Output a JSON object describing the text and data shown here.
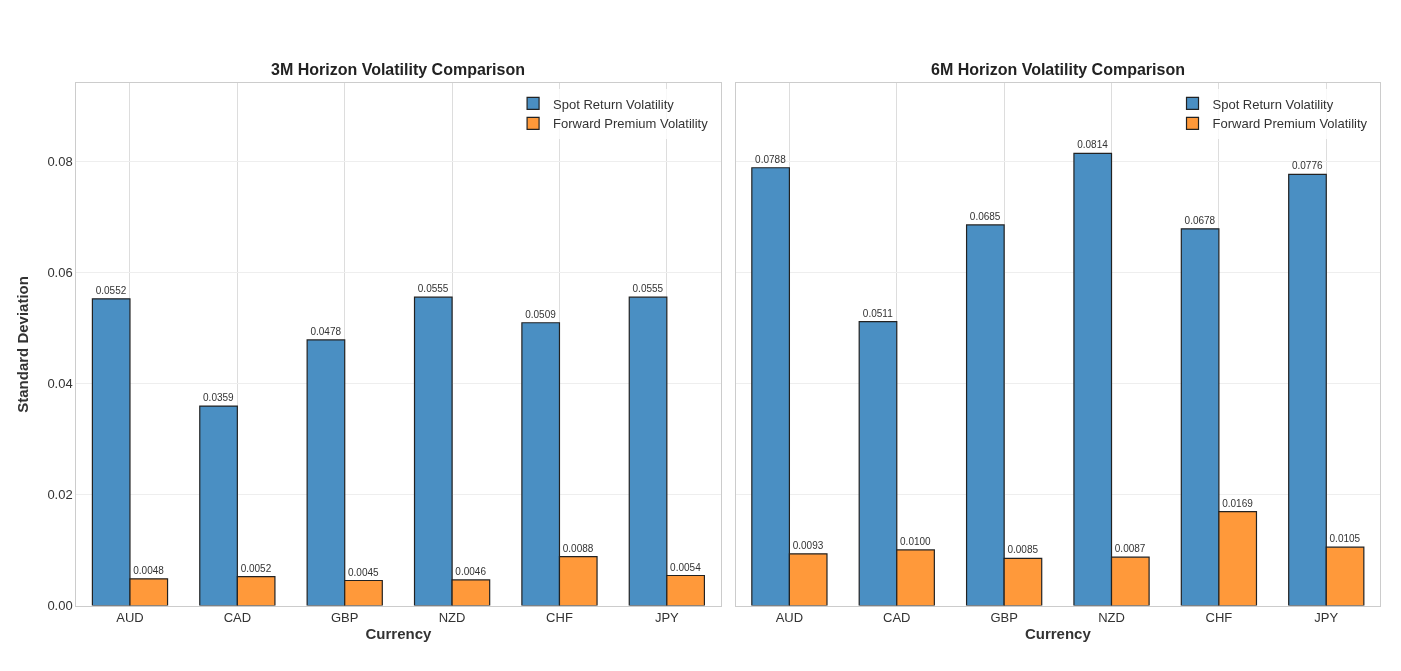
{
  "chart_data": [
    {
      "type": "bar",
      "title": "3M Horizon Volatility Comparison",
      "xlabel": "Currency",
      "ylabel": "Standard Deviation",
      "categories": [
        "AUD",
        "CAD",
        "GBP",
        "NZD",
        "CHF",
        "JPY"
      ],
      "series": [
        {
          "name": "Spot Return Volatility",
          "color": "#4a8fc3",
          "values": [
            0.0552,
            0.0359,
            0.0478,
            0.0555,
            0.0509,
            0.0555
          ],
          "value_labels": [
            "0.0552",
            "0.0359",
            "0.0478",
            "0.0555",
            "0.0509",
            "0.0555"
          ]
        },
        {
          "name": "Forward Premium Volatility",
          "color": "#ff993a",
          "values": [
            0.0048,
            0.0052,
            0.0045,
            0.0046,
            0.0088,
            0.0054
          ],
          "value_labels": [
            "0.0048",
            "0.0052",
            "0.0045",
            "0.0046",
            "0.0088",
            "0.0054"
          ]
        }
      ],
      "ylim": [
        0,
        0.094
      ],
      "yticks": [
        {
          "value": 0,
          "label": "0.00"
        },
        {
          "value": 0.02,
          "label": "0.02"
        },
        {
          "value": 0.04,
          "label": "0.04"
        },
        {
          "value": 0.06,
          "label": "0.06"
        },
        {
          "value": 0.08,
          "label": "0.08"
        }
      ],
      "grid": true,
      "legend": "top right"
    },
    {
      "type": "bar",
      "title": "6M Horizon Volatility Comparison",
      "xlabel": "Currency",
      "categories": [
        "AUD",
        "CAD",
        "GBP",
        "NZD",
        "CHF",
        "JPY"
      ],
      "series": [
        {
          "name": "Spot Return Volatility",
          "color": "#4a8fc3",
          "values": [
            0.0788,
            0.0511,
            0.0685,
            0.0814,
            0.0678,
            0.0776
          ],
          "value_labels": [
            "0.0788",
            "0.0511",
            "0.0685",
            "0.0814",
            "0.0678",
            "0.0776"
          ]
        },
        {
          "name": "Forward Premium Volatility",
          "color": "#ff993a",
          "values": [
            0.0093,
            0.01,
            0.0085,
            0.0087,
            0.0169,
            0.0105
          ],
          "value_labels": [
            "0.0093",
            "0.0100",
            "0.0085",
            "0.0087",
            "0.0169",
            "0.0105"
          ]
        }
      ],
      "ylim": [
        0,
        0.094
      ],
      "yticks": [
        0,
        0.02,
        0.04,
        0.06,
        0.08
      ],
      "grid": true,
      "legend": "top right",
      "tick_labels": "x"
    }
  ]
}
